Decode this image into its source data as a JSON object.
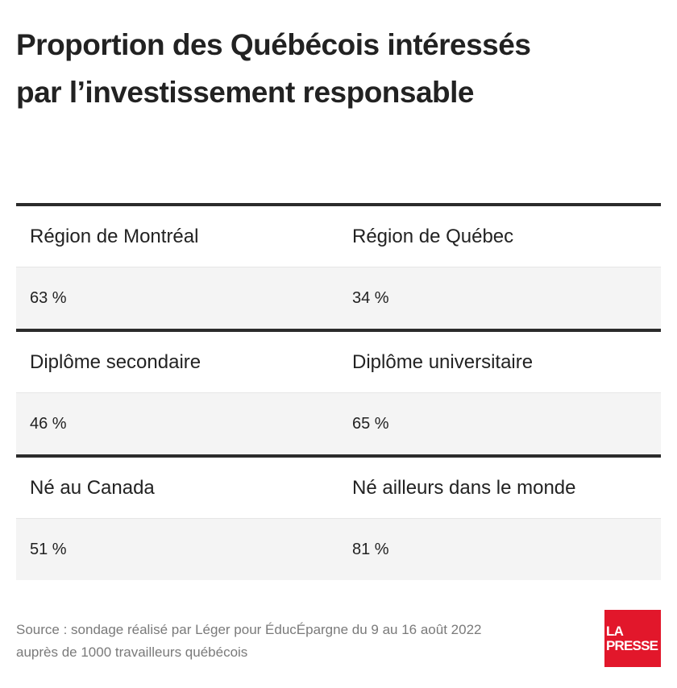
{
  "title": {
    "line1": "Proportion des Québécois intéressés",
    "line2": "par l’investissement responsable"
  },
  "groups": [
    {
      "headers": [
        "Région de Montréal",
        "Région de Québec"
      ],
      "values": [
        "63 %",
        "34 %"
      ]
    },
    {
      "headers": [
        "Diplôme secondaire",
        "Diplôme universitaire"
      ],
      "values": [
        "46 %",
        "65 %"
      ]
    },
    {
      "headers": [
        "Né au Canada",
        "Né ailleurs dans le monde"
      ],
      "values": [
        "51 %",
        "81 %"
      ]
    }
  ],
  "source": {
    "line1": "Source : sondage réalisé par Léger pour ÉducÉpargne du 9 au 16 août 2022",
    "line2": "auprès de 1000 travailleurs québécois"
  },
  "logo": {
    "line1": "LA",
    "line2": "PRESSE",
    "color": "#e2172b"
  }
}
